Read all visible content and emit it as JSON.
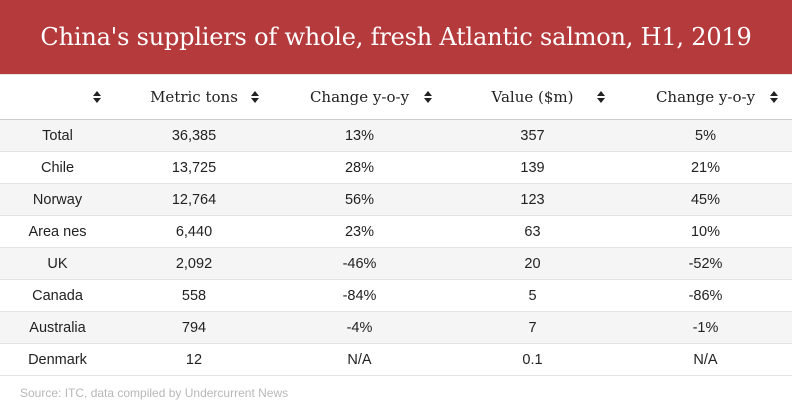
{
  "header": {
    "title": "China's suppliers of whole, fresh Atlantic salmon, H1, 2019"
  },
  "colors": {
    "header_bg": "#b53a3c",
    "stripe": "#f5f5f5"
  },
  "chart_data": {
    "type": "table",
    "title": "China's suppliers of whole, fresh Atlantic salmon, H1, 2019",
    "columns": [
      "",
      "Metric tons",
      "Change y-o-y",
      "Value ($m)",
      "Change y-o-y"
    ],
    "rows": [
      [
        "Total",
        "36,385",
        "13%",
        "357",
        "5%"
      ],
      [
        "Chile",
        "13,725",
        "28%",
        "139",
        "21%"
      ],
      [
        "Norway",
        "12,764",
        "56%",
        "123",
        "45%"
      ],
      [
        "Area nes",
        "6,440",
        "23%",
        "63",
        "10%"
      ],
      [
        "UK",
        "2,092",
        "-46%",
        "20",
        "-52%"
      ],
      [
        "Canada",
        "558",
        "-84%",
        "5",
        "-86%"
      ],
      [
        "Australia",
        "794",
        "-4%",
        "7",
        "-1%"
      ],
      [
        "Denmark",
        "12",
        "N/A",
        "0.1",
        "N/A"
      ]
    ]
  },
  "source": "Source: ITC, data compiled by Undercurrent News"
}
